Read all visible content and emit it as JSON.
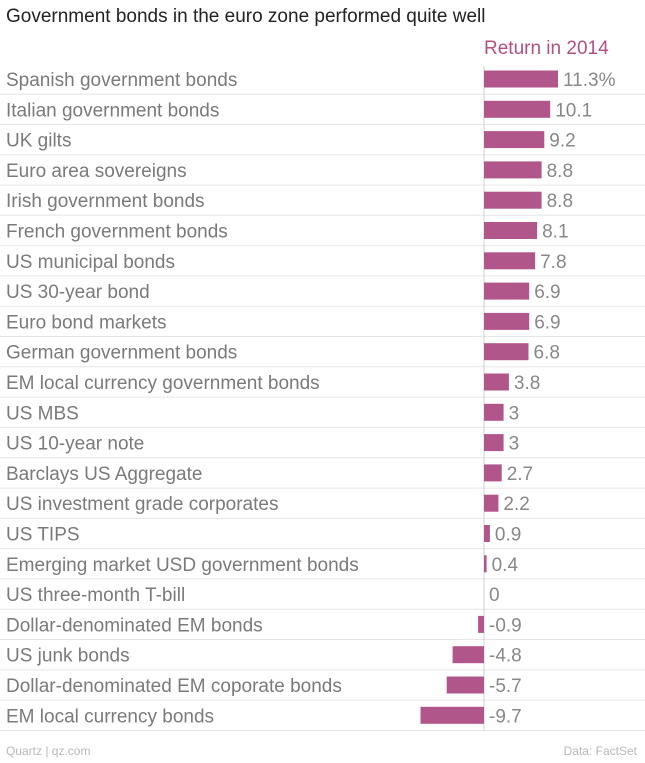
{
  "chart_data": {
    "type": "bar",
    "orientation": "horizontal",
    "title": "Government bonds in the euro zone performed quite well",
    "value_header": "Return in 2014",
    "categories": [
      "Spanish government bonds",
      "Italian government bonds",
      "UK gilts",
      "Euro area sovereigns",
      "Irish government bonds",
      "French government bonds",
      "US municipal bonds",
      "US 30-year bond",
      "Euro bond markets",
      "German government bonds",
      "EM local currency government bonds",
      "US MBS",
      "US 10-year note",
      "Barclays US Aggregate",
      "US investment grade corporates",
      "US TIPS",
      "Emerging market USD government bonds",
      "US three-month T-bill",
      "Dollar-denominated EM bonds",
      "US junk bonds",
      "Dollar-denominated EM coporate bonds",
      "EM local currency bonds"
    ],
    "values": [
      11.3,
      10.1,
      9.2,
      8.8,
      8.8,
      8.1,
      7.8,
      6.9,
      6.9,
      6.8,
      3.8,
      3,
      3,
      2.7,
      2.2,
      0.9,
      0.4,
      0,
      -0.9,
      -4.8,
      -5.7,
      -9.7
    ],
    "value_labels": [
      "11.3%",
      "10.1",
      "9.2",
      "8.8",
      "8.8",
      "8.1",
      "7.8",
      "6.9",
      "6.9",
      "6.8",
      "3.8",
      "3",
      "3",
      "2.7",
      "2.2",
      "0.9",
      "0.4",
      "0",
      "-0.9",
      "-4.8",
      "-5.7",
      "-9.7"
    ],
    "xlim": [
      -9.7,
      11.3
    ],
    "grid": false,
    "bar_color": "#b0568b"
  },
  "colors": {
    "accent": "#b44f82",
    "label_text": "#7a7a7a",
    "value_text": "#888888",
    "title_text": "#222222",
    "gridline": "#e6e6e6",
    "footer_text": "#b8b8b8"
  },
  "footer": {
    "source_credit": "Quartz | qz.com",
    "data_credit": "Data: FactSet"
  }
}
